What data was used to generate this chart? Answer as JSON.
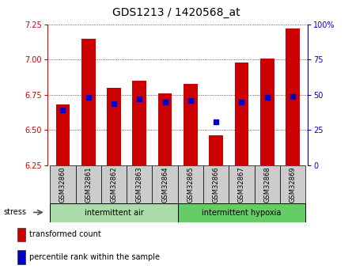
{
  "title": "GDS1213 / 1420568_at",
  "samples": [
    "GSM32860",
    "GSM32861",
    "GSM32862",
    "GSM32863",
    "GSM32864",
    "GSM32865",
    "GSM32866",
    "GSM32867",
    "GSM32868",
    "GSM32869"
  ],
  "bar_tops": [
    6.68,
    7.15,
    6.8,
    6.85,
    6.76,
    6.83,
    6.46,
    6.98,
    7.01,
    7.22
  ],
  "bar_bottom": 6.25,
  "percentile_values": [
    6.64,
    6.73,
    6.69,
    6.72,
    6.7,
    6.71,
    6.56,
    6.7,
    6.73,
    6.74
  ],
  "group1_label": "intermittent air",
  "group2_label": "intermittent hypoxia",
  "group1_count": 5,
  "group2_count": 5,
  "ylim_left": [
    6.25,
    7.25
  ],
  "ylim_right": [
    0,
    100
  ],
  "yticks_left": [
    6.25,
    6.5,
    6.75,
    7.0,
    7.25
  ],
  "yticks_right": [
    0,
    25,
    50,
    75,
    100
  ],
  "bar_color": "#cc0000",
  "dot_color": "#0000cc",
  "group1_bg": "#aaddaa",
  "group2_bg": "#66cc66",
  "xlabel_bg": "#cccccc",
  "legend_bar_label": "transformed count",
  "legend_dot_label": "percentile rank within the sample",
  "title_fontsize": 10,
  "tick_fontsize": 7,
  "sample_fontsize": 6,
  "group_fontsize": 7,
  "legend_fontsize": 7
}
